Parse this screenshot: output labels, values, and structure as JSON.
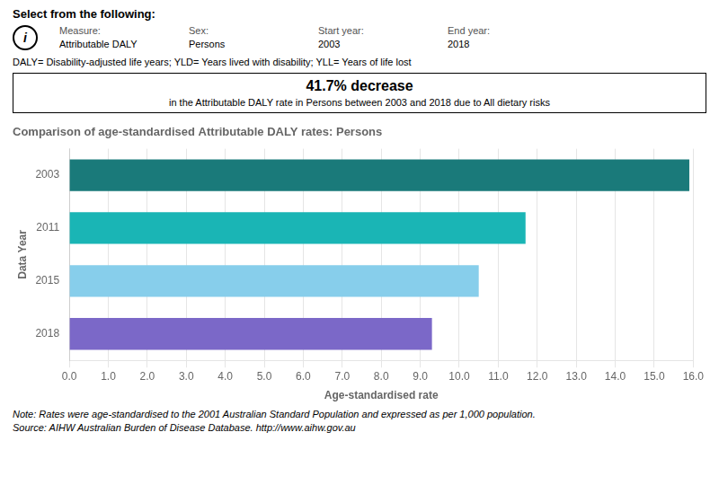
{
  "chart_data": {
    "type": "bar",
    "orientation": "horizontal",
    "title": "Comparison of age-standardised Attributable DALY rates: Persons",
    "x_label": "Age-standardised rate",
    "y_label": "Data Year",
    "categories": [
      "2003",
      "2011",
      "2015",
      "2018"
    ],
    "values": [
      15.9,
      11.7,
      10.5,
      9.3
    ],
    "colors": [
      "#1a7a7a",
      "#1ab5b5",
      "#87ceeb",
      "#7b68c8"
    ],
    "xlim": [
      0,
      16.0
    ],
    "xticks": [
      {
        "value": 0,
        "label": "0.0"
      },
      {
        "value": 1,
        "label": "1.0"
      },
      {
        "value": 2,
        "label": "2.0"
      },
      {
        "value": 3,
        "label": "3.0"
      },
      {
        "value": 4,
        "label": "4.0"
      },
      {
        "value": 5,
        "label": "5.0"
      },
      {
        "value": 6,
        "label": "6.0"
      },
      {
        "value": 7,
        "label": "7.0"
      },
      {
        "value": 8,
        "label": "8.0"
      },
      {
        "value": 9,
        "label": "9.0"
      },
      {
        "value": 10,
        "label": "10.0"
      },
      {
        "value": 11,
        "label": "11.0"
      },
      {
        "value": 12,
        "label": "12.0"
      },
      {
        "value": 13,
        "label": "13.0"
      },
      {
        "value": 14,
        "label": "14.0"
      },
      {
        "value": 15,
        "label": "15.0"
      },
      {
        "value": 16,
        "label": "16.0"
      }
    ],
    "grid": true,
    "annotations": [
      "Select from the following:",
      "i",
      "Measure:",
      "Attributable DALY",
      "Sex:",
      "Persons",
      "Start year:",
      "2003",
      "End year:",
      "2018",
      "DALY= Disability-adjusted life years; YLD= Years lived with disability; YLL= Years of life lost",
      "41.7% decrease",
      "in the Attributable DALY rate in Persons between 2003 and 2018 due to All dietary risks",
      "Note: Rates were age-standardised to the 2001 Australian Standard Population and expressed as per 1,000 population.",
      "Source: AIHW Australian Burden of Disease Database. ",
      "http://www.aihw.gov.au"
    ]
  }
}
